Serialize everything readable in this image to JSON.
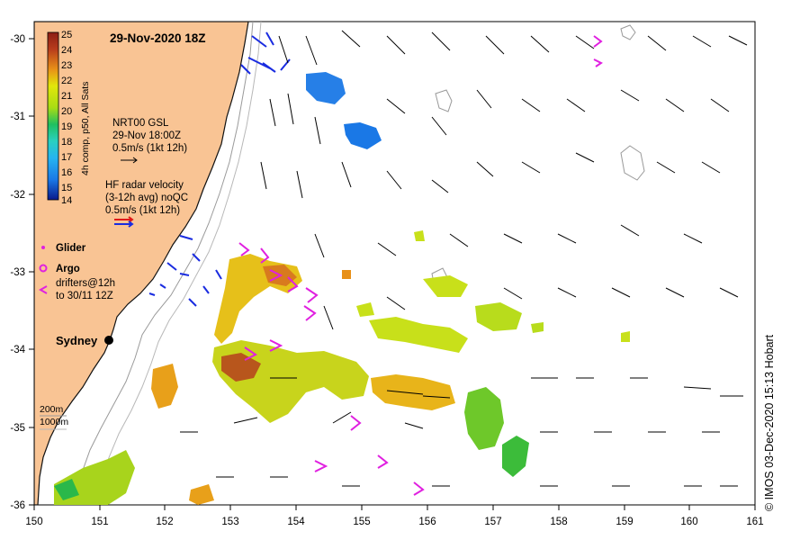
{
  "map": {
    "title": "29-Nov-2020 18Z",
    "lon_ticks": [
      "150",
      "151",
      "152",
      "153",
      "154",
      "155",
      "156",
      "157",
      "158",
      "159",
      "160",
      "161"
    ],
    "lat_ticks": [
      "-30",
      "-31",
      "-32",
      "-33",
      "-34",
      "-35",
      "-36"
    ],
    "lon_range": [
      150,
      161
    ],
    "lat_range": [
      -36,
      -29.85
    ],
    "land_color": "#f9c494",
    "ocean_color": "#ffffff",
    "city": {
      "name": "Sydney",
      "lon": 151.15,
      "lat": -33.88
    }
  },
  "colorbar": {
    "label": "4h comp, p50, All Sats",
    "ticks": [
      "25",
      "24",
      "23",
      "22",
      "21",
      "20",
      "19",
      "18",
      "17",
      "16",
      "15",
      "14"
    ],
    "range": [
      14,
      25
    ],
    "colors": [
      "#0a1a8c",
      "#1340c8",
      "#1a78e6",
      "#26b4f0",
      "#2ad0c0",
      "#1fc060",
      "#58c828",
      "#a8dc14",
      "#e2e60a",
      "#f0c012",
      "#e89018",
      "#d8621c",
      "#b83c1c",
      "#8c1e14"
    ]
  },
  "legend": {
    "gsl_title": "NRT00 GSL",
    "gsl_time": "29-Nov 18:00Z",
    "gsl_scale": "0.5m/s (1kt 12h)",
    "hf_title": "HF radar velocity",
    "hf_avg": "(3-12h avg) noQC",
    "hf_scale": "0.5m/s (1kt 12h)",
    "glider": "Glider",
    "argo": "Argo",
    "drifters_1": "drifters@12h",
    "drifters_2": "to 30/11 12Z",
    "isobath_200": "200m",
    "isobath_1000": "1000m"
  },
  "credit": "© IMOS 03-Dec-2020 15:13 Hobart"
}
